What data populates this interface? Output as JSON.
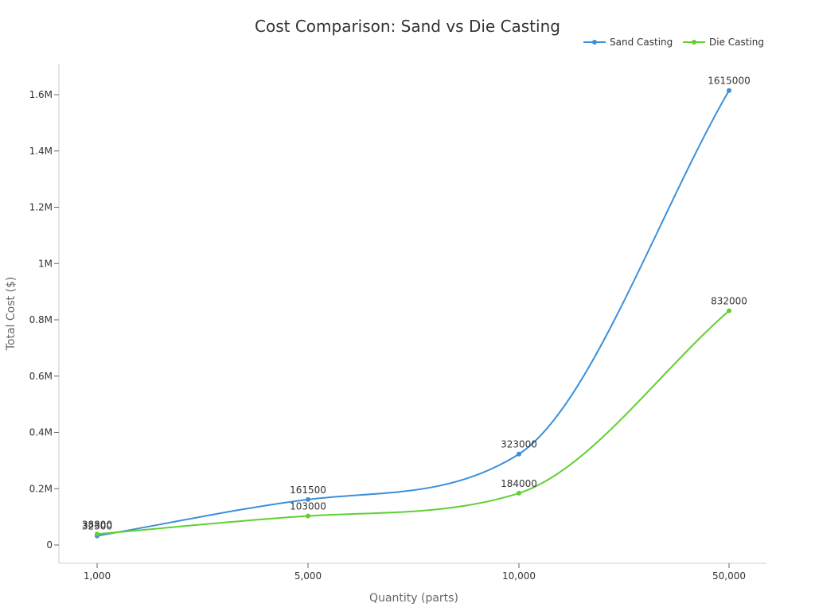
{
  "chart_data": {
    "type": "line",
    "title": "Cost Comparison: Sand vs Die Casting",
    "xlabel": "Quantity (parts)",
    "ylabel": "Total Cost ($)",
    "categories": [
      "1,000",
      "5,000",
      "10,000",
      "50,000"
    ],
    "ylim": [
      0,
      1700000
    ],
    "yticks": [
      {
        "value": 0,
        "label": "0"
      },
      {
        "value": 200000,
        "label": "0.2M"
      },
      {
        "value": 400000,
        "label": "0.4M"
      },
      {
        "value": 600000,
        "label": "0.6M"
      },
      {
        "value": 800000,
        "label": "0.8M"
      },
      {
        "value": 1000000,
        "label": "1M"
      },
      {
        "value": 1200000,
        "label": "1.2M"
      },
      {
        "value": 1400000,
        "label": "1.4M"
      },
      {
        "value": 1600000,
        "label": "1.6M"
      }
    ],
    "legend_position": "top-right",
    "grid": false,
    "series": [
      {
        "name": "Sand Casting",
        "color": "#3b8fd9",
        "values": [
          32300,
          161500,
          323000,
          1615000
        ],
        "labels": [
          "32300",
          "161500",
          "323000",
          "1615000"
        ]
      },
      {
        "name": "Die Casting",
        "color": "#5fd02f",
        "values": [
          38800,
          103000,
          184000,
          832000
        ],
        "labels": [
          "38800",
          "103000",
          "184000",
          "832000"
        ]
      }
    ]
  }
}
